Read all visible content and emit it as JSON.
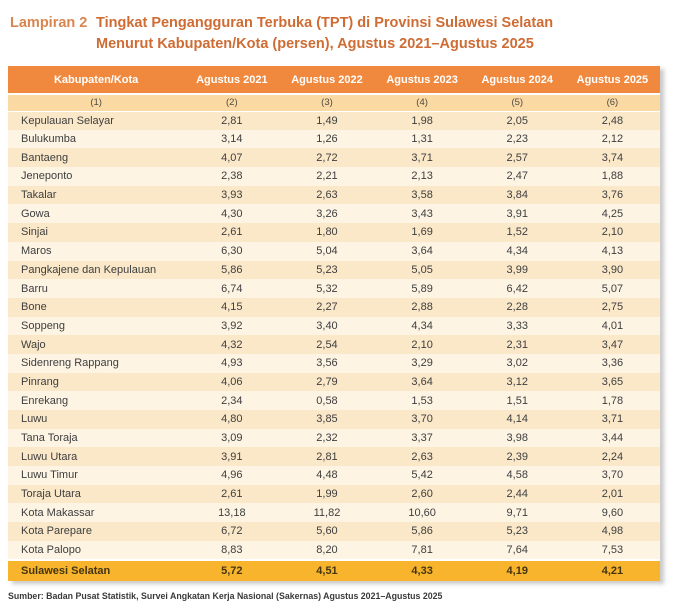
{
  "page": {
    "lampiran_label": "Lampiran 2",
    "title_line1": "Tingkat Pengangguran Terbuka (TPT) di Provinsi Sulawesi Selatan",
    "title_line2": "Menurut Kabupaten/Kota (persen), Agustus 2021–Agustus 2025",
    "source_note": "Sumber: Badan Pusat Statistik, Survei Angkatan Kerja Nasional (Sakernas) Agustus 2021–Agustus 2025"
  },
  "colors": {
    "header_bg": "#F0883E",
    "header_text": "#FFFFFF",
    "subheader_bg": "#FBD9A3",
    "row_odd_bg": "#FAE8C9",
    "row_even_bg": "#FDF4E4",
    "total_row_bg": "#F7B42C",
    "title_color": "#CE6C34",
    "lampiran_color": "#D8854F",
    "body_text": "#3E3E3E"
  },
  "table": {
    "columns": [
      "Kabupaten/Kota",
      "Agustus 2021",
      "Agustus 2022",
      "Agustus 2023",
      "Agustus 2024",
      "Agustus 2025"
    ],
    "column_numbers": [
      "(1)",
      "(2)",
      "(3)",
      "(4)",
      "(5)",
      "(6)"
    ],
    "rows": [
      {
        "name": "Kepulauan Selayar",
        "values": [
          "2,81",
          "1,49",
          "1,98",
          "2,05",
          "2,48"
        ]
      },
      {
        "name": "Bulukumba",
        "values": [
          "3,14",
          "1,26",
          "1,31",
          "2,23",
          "2,12"
        ]
      },
      {
        "name": "Bantaeng",
        "values": [
          "4,07",
          "2,72",
          "3,71",
          "2,57",
          "3,74"
        ]
      },
      {
        "name": "Jeneponto",
        "values": [
          "2,38",
          "2,21",
          "2,13",
          "2,47",
          "1,88"
        ]
      },
      {
        "name": "Takalar",
        "values": [
          "3,93",
          "2,63",
          "3,58",
          "3,84",
          "3,76"
        ]
      },
      {
        "name": "Gowa",
        "values": [
          "4,30",
          "3,26",
          "3,43",
          "3,91",
          "4,25"
        ]
      },
      {
        "name": "Sinjai",
        "values": [
          "2,61",
          "1,80",
          "1,69",
          "1,52",
          "2,10"
        ]
      },
      {
        "name": "Maros",
        "values": [
          "6,30",
          "5,04",
          "3,64",
          "4,34",
          "4,13"
        ]
      },
      {
        "name": "Pangkajene dan Kepulauan",
        "values": [
          "5,86",
          "5,23",
          "5,05",
          "3,99",
          "3,90"
        ]
      },
      {
        "name": "Barru",
        "values": [
          "6,74",
          "5,32",
          "5,89",
          "6,42",
          "5,07"
        ]
      },
      {
        "name": "Bone",
        "values": [
          "4,15",
          "2,27",
          "2,88",
          "2,28",
          "2,75"
        ]
      },
      {
        "name": "Soppeng",
        "values": [
          "3,92",
          "3,40",
          "4,34",
          "3,33",
          "4,01"
        ]
      },
      {
        "name": "Wajo",
        "values": [
          "4,32",
          "2,54",
          "2,10",
          "2,31",
          "3,47"
        ]
      },
      {
        "name": "Sidenreng Rappang",
        "values": [
          "4,93",
          "3,56",
          "3,29",
          "3,02",
          "3,36"
        ]
      },
      {
        "name": "Pinrang",
        "values": [
          "4,06",
          "2,79",
          "3,64",
          "3,12",
          "3,65"
        ]
      },
      {
        "name": "Enrekang",
        "values": [
          "2,34",
          "0,58",
          "1,53",
          "1,51",
          "1,78"
        ]
      },
      {
        "name": "Luwu",
        "values": [
          "4,80",
          "3,85",
          "3,70",
          "4,14",
          "3,71"
        ]
      },
      {
        "name": "Tana Toraja",
        "values": [
          "3,09",
          "2,32",
          "3,37",
          "3,98",
          "3,44"
        ]
      },
      {
        "name": "Luwu Utara",
        "values": [
          "3,91",
          "2,81",
          "2,63",
          "2,39",
          "2,24"
        ]
      },
      {
        "name": "Luwu Timur",
        "values": [
          "4,96",
          "4,48",
          "5,42",
          "4,58",
          "3,70"
        ]
      },
      {
        "name": "Toraja Utara",
        "values": [
          "2,61",
          "1,99",
          "2,60",
          "2,44",
          "2,01"
        ]
      },
      {
        "name": "Kota Makassar",
        "values": [
          "13,18",
          "11,82",
          "10,60",
          "9,71",
          "9,60"
        ]
      },
      {
        "name": "Kota Parepare",
        "values": [
          "6,72",
          "5,60",
          "5,86",
          "5,23",
          "4,98"
        ]
      },
      {
        "name": "Kota Palopo",
        "values": [
          "8,83",
          "8,20",
          "7,81",
          "7,64",
          "7,53"
        ]
      }
    ],
    "total_row": {
      "name": "Sulawesi Selatan",
      "values": [
        "5,72",
        "4,51",
        "4,33",
        "4,19",
        "4,21"
      ]
    }
  }
}
